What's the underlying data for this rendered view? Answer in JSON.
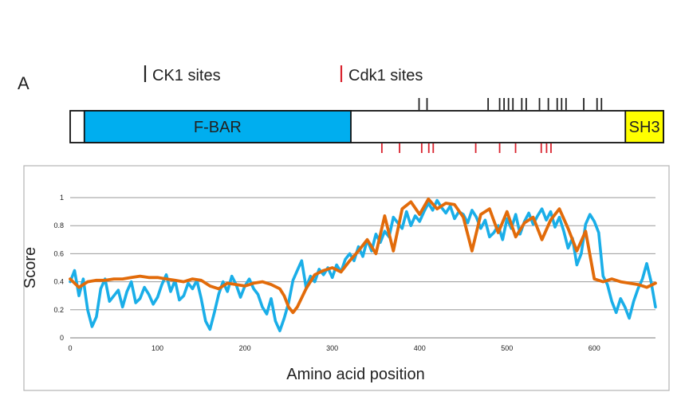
{
  "panel_label": "A",
  "domain_map": {
    "legend": [
      {
        "label": "CK1 sites",
        "color": "#222222"
      },
      {
        "label": "Cdk1 sites",
        "color": "#d9232e"
      }
    ],
    "protein_length": 670,
    "domains": [
      {
        "name": "F-BAR",
        "start": 16,
        "end": 317,
        "color": "#00aeef"
      },
      {
        "name": "SH3",
        "start": 627,
        "end": 670,
        "color": "#ffff00"
      }
    ],
    "ck1_sites": [
      394,
      403,
      472,
      485,
      490,
      495,
      500,
      510,
      515,
      530,
      540,
      550,
      555,
      560,
      580,
      595,
      600
    ],
    "cdk1_sites": [
      352,
      372,
      397,
      405,
      410,
      458,
      485,
      503,
      532,
      538,
      543
    ]
  },
  "chart_data": {
    "type": "line",
    "title": "",
    "xlabel": "Amino acid position",
    "ylabel": "Score",
    "xlim": [
      0,
      670
    ],
    "ylim": [
      0,
      1
    ],
    "xticks": [
      0,
      100,
      200,
      300,
      400,
      500,
      600
    ],
    "yticks": [
      0,
      0.2,
      0.4,
      0.6,
      0.8,
      1
    ],
    "grid": "horizontal",
    "series": [
      {
        "color": "#1aaee8",
        "x": [
          0,
          5,
          10,
          15,
          20,
          25,
          30,
          35,
          40,
          45,
          50,
          55,
          60,
          65,
          70,
          75,
          80,
          85,
          90,
          95,
          100,
          105,
          110,
          115,
          120,
          125,
          130,
          135,
          140,
          145,
          150,
          155,
          160,
          165,
          170,
          175,
          180,
          185,
          190,
          195,
          200,
          205,
          210,
          215,
          220,
          225,
          230,
          235,
          240,
          245,
          250,
          255,
          260,
          265,
          270,
          275,
          280,
          285,
          290,
          295,
          300,
          305,
          310,
          315,
          320,
          325,
          330,
          335,
          340,
          345,
          350,
          355,
          360,
          365,
          370,
          375,
          380,
          385,
          390,
          395,
          400,
          405,
          410,
          415,
          420,
          425,
          430,
          435,
          440,
          445,
          450,
          455,
          460,
          465,
          470,
          475,
          480,
          485,
          490,
          495,
          500,
          505,
          510,
          515,
          520,
          525,
          530,
          535,
          540,
          545,
          550,
          555,
          560,
          565,
          570,
          575,
          580,
          585,
          590,
          595,
          600,
          605,
          610,
          615,
          620,
          625,
          630,
          635,
          640,
          645,
          650,
          655,
          660,
          665,
          670
        ],
        "y": [
          0.4,
          0.48,
          0.3,
          0.42,
          0.2,
          0.08,
          0.15,
          0.35,
          0.42,
          0.26,
          0.3,
          0.34,
          0.22,
          0.33,
          0.4,
          0.25,
          0.28,
          0.36,
          0.31,
          0.24,
          0.29,
          0.38,
          0.45,
          0.33,
          0.41,
          0.27,
          0.3,
          0.39,
          0.35,
          0.41,
          0.28,
          0.12,
          0.06,
          0.18,
          0.31,
          0.4,
          0.33,
          0.44,
          0.38,
          0.29,
          0.37,
          0.42,
          0.35,
          0.31,
          0.22,
          0.17,
          0.28,
          0.12,
          0.05,
          0.14,
          0.25,
          0.41,
          0.48,
          0.55,
          0.36,
          0.44,
          0.4,
          0.49,
          0.45,
          0.5,
          0.43,
          0.52,
          0.47,
          0.56,
          0.6,
          0.55,
          0.65,
          0.58,
          0.7,
          0.62,
          0.74,
          0.68,
          0.76,
          0.72,
          0.86,
          0.82,
          0.78,
          0.9,
          0.8,
          0.87,
          0.83,
          0.9,
          0.96,
          0.91,
          0.98,
          0.93,
          0.89,
          0.94,
          0.85,
          0.9,
          0.88,
          0.82,
          0.91,
          0.86,
          0.78,
          0.84,
          0.72,
          0.75,
          0.8,
          0.7,
          0.85,
          0.78,
          0.88,
          0.74,
          0.83,
          0.89,
          0.81,
          0.87,
          0.92,
          0.84,
          0.9,
          0.79,
          0.86,
          0.76,
          0.64,
          0.71,
          0.52,
          0.6,
          0.81,
          0.88,
          0.83,
          0.75,
          0.44,
          0.38,
          0.26,
          0.18,
          0.28,
          0.22,
          0.14,
          0.26,
          0.35,
          0.42,
          0.53,
          0.4,
          0.22
        ]
      },
      {
        "color": "#e26b0a",
        "x": [
          0,
          10,
          20,
          30,
          40,
          50,
          60,
          70,
          80,
          90,
          100,
          110,
          120,
          130,
          140,
          150,
          160,
          170,
          180,
          190,
          200,
          210,
          220,
          230,
          240,
          245,
          250,
          255,
          260,
          270,
          280,
          290,
          300,
          310,
          320,
          330,
          340,
          350,
          360,
          370,
          380,
          390,
          400,
          410,
          420,
          430,
          440,
          450,
          460,
          470,
          480,
          490,
          500,
          510,
          520,
          530,
          540,
          550,
          560,
          570,
          580,
          590,
          600,
          610,
          620,
          630,
          640,
          650,
          660,
          670
        ],
        "y": [
          0.42,
          0.36,
          0.4,
          0.41,
          0.41,
          0.42,
          0.42,
          0.43,
          0.44,
          0.43,
          0.43,
          0.42,
          0.41,
          0.4,
          0.42,
          0.41,
          0.37,
          0.35,
          0.39,
          0.38,
          0.37,
          0.39,
          0.4,
          0.38,
          0.35,
          0.3,
          0.22,
          0.18,
          0.22,
          0.35,
          0.45,
          0.48,
          0.5,
          0.47,
          0.55,
          0.62,
          0.7,
          0.6,
          0.87,
          0.62,
          0.92,
          0.97,
          0.88,
          0.99,
          0.92,
          0.96,
          0.95,
          0.86,
          0.62,
          0.88,
          0.92,
          0.75,
          0.9,
          0.72,
          0.82,
          0.86,
          0.7,
          0.84,
          0.92,
          0.78,
          0.62,
          0.76,
          0.42,
          0.4,
          0.42,
          0.4,
          0.39,
          0.38,
          0.36,
          0.39
        ]
      }
    ]
  }
}
